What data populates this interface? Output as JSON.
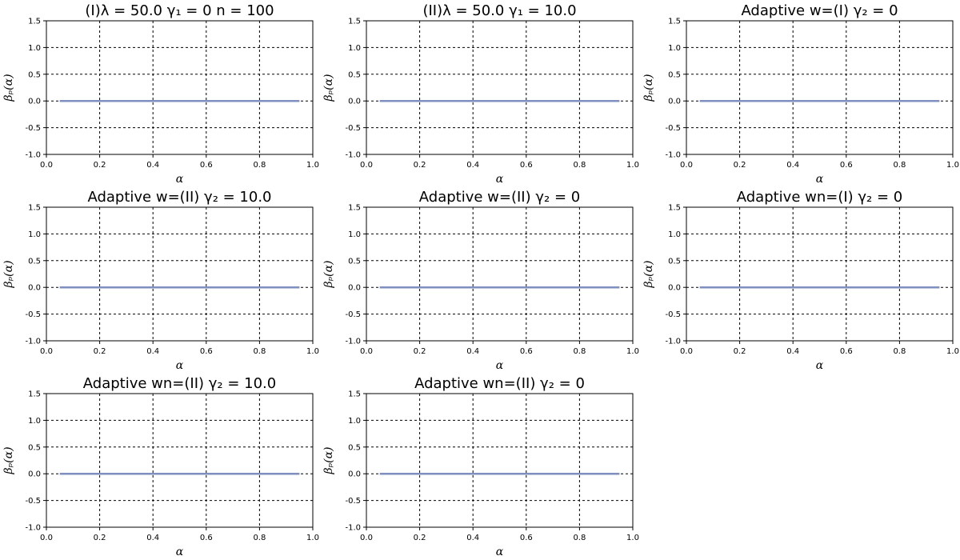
{
  "chart_data": [
    {
      "type": "line",
      "title": "(I)λ = 50.0   γ₁ = 0   n = 100",
      "xlabel": "α",
      "ylabel": "βₚ(α)",
      "xlim": [
        0,
        1
      ],
      "ylim": [
        -1,
        1.5
      ],
      "xticks": [
        "0.0",
        "0.2",
        "0.4",
        "0.6",
        "0.8",
        "1.0"
      ],
      "yticks": [
        "-1.0",
        "-0.5",
        "0.0",
        "0.5",
        "1.0",
        "1.5"
      ],
      "grid": true,
      "series": [
        {
          "color": "#7f8fbf",
          "x": [
            0.05,
            0.95
          ],
          "y": [
            0,
            0
          ]
        }
      ]
    },
    {
      "type": "line",
      "title": "(II)λ = 50.0   γ₁ = 10.0",
      "xlabel": "α",
      "ylabel": "βₚ(α)",
      "xlim": [
        0,
        1
      ],
      "ylim": [
        -1,
        1.5
      ],
      "xticks": [
        "0.0",
        "0.2",
        "0.4",
        "0.6",
        "0.8",
        "1.0"
      ],
      "yticks": [
        "-1.0",
        "-0.5",
        "0.0",
        "0.5",
        "1.0",
        "1.5"
      ],
      "grid": true,
      "series": [
        {
          "color": "#7f8fbf",
          "x": [
            0.05,
            0.95
          ],
          "y": [
            0,
            0
          ]
        }
      ]
    },
    {
      "type": "line",
      "title": "Adaptive w=(I) γ₂ = 0",
      "xlabel": "α",
      "ylabel": "βₚ(α)",
      "xlim": [
        0,
        1
      ],
      "ylim": [
        -1,
        1.5
      ],
      "xticks": [
        "0.0",
        "0.2",
        "0.4",
        "0.6",
        "0.8",
        "1.0"
      ],
      "yticks": [
        "-1.0",
        "-0.5",
        "0.0",
        "0.5",
        "1.0",
        "1.5"
      ],
      "grid": true,
      "series": [
        {
          "color": "#7f8fbf",
          "x": [
            0.05,
            0.95
          ],
          "y": [
            0,
            0
          ]
        }
      ]
    },
    {
      "type": "line",
      "title": "Adaptive w=(II) γ₂ = 10.0",
      "xlabel": "α",
      "ylabel": "βₚ(α)",
      "xlim": [
        0,
        1
      ],
      "ylim": [
        -1,
        1.5
      ],
      "xticks": [
        "0.0",
        "0.2",
        "0.4",
        "0.6",
        "0.8",
        "1.0"
      ],
      "yticks": [
        "-1.0",
        "-0.5",
        "0.0",
        "0.5",
        "1.0",
        "1.5"
      ],
      "grid": true,
      "series": [
        {
          "color": "#7f8fbf",
          "x": [
            0.05,
            0.95
          ],
          "y": [
            0,
            0
          ]
        }
      ]
    },
    {
      "type": "line",
      "title": "Adaptive w=(II) γ₂ = 0",
      "xlabel": "α",
      "ylabel": "βₚ(α)",
      "xlim": [
        0,
        1
      ],
      "ylim": [
        -1,
        1.5
      ],
      "xticks": [
        "0.0",
        "0.2",
        "0.4",
        "0.6",
        "0.8",
        "1.0"
      ],
      "yticks": [
        "-1.0",
        "-0.5",
        "0.0",
        "0.5",
        "1.0",
        "1.5"
      ],
      "grid": true,
      "series": [
        {
          "color": "#7f8fbf",
          "x": [
            0.05,
            0.95
          ],
          "y": [
            0,
            0
          ]
        }
      ]
    },
    {
      "type": "line",
      "title": "Adaptive wn=(I) γ₂ = 0",
      "xlabel": "α",
      "ylabel": "βₚ(α)",
      "xlim": [
        0,
        1
      ],
      "ylim": [
        -1,
        1.5
      ],
      "xticks": [
        "0.0",
        "0.2",
        "0.4",
        "0.6",
        "0.8",
        "1.0"
      ],
      "yticks": [
        "-1.0",
        "-0.5",
        "0.0",
        "0.5",
        "1.0",
        "1.5"
      ],
      "grid": true,
      "series": [
        {
          "color": "#7f8fbf",
          "x": [
            0.05,
            0.95
          ],
          "y": [
            0,
            0
          ]
        }
      ]
    },
    {
      "type": "line",
      "title": "Adaptive wn=(II) γ₂ = 10.0",
      "xlabel": "α",
      "ylabel": "βₚ(α)",
      "xlim": [
        0,
        1
      ],
      "ylim": [
        -1,
        1.5
      ],
      "xticks": [
        "0.0",
        "0.2",
        "0.4",
        "0.6",
        "0.8",
        "1.0"
      ],
      "yticks": [
        "-1.0",
        "-0.5",
        "0.0",
        "0.5",
        "1.0",
        "1.5"
      ],
      "grid": true,
      "series": [
        {
          "color": "#7f8fbf",
          "x": [
            0.05,
            0.95
          ],
          "y": [
            0,
            0
          ]
        }
      ]
    },
    {
      "type": "line",
      "title": "Adaptive wn=(II) γ₂ = 0",
      "xlabel": "α",
      "ylabel": "βₚ(α)",
      "xlim": [
        0,
        1
      ],
      "ylim": [
        -1,
        1.5
      ],
      "xticks": [
        "0.0",
        "0.2",
        "0.4",
        "0.6",
        "0.8",
        "1.0"
      ],
      "yticks": [
        "-1.0",
        "-0.5",
        "0.0",
        "0.5",
        "1.0",
        "1.5"
      ],
      "grid": true,
      "series": [
        {
          "color": "#7f8fbf",
          "x": [
            0.05,
            0.95
          ],
          "y": [
            0,
            0
          ]
        }
      ]
    }
  ]
}
